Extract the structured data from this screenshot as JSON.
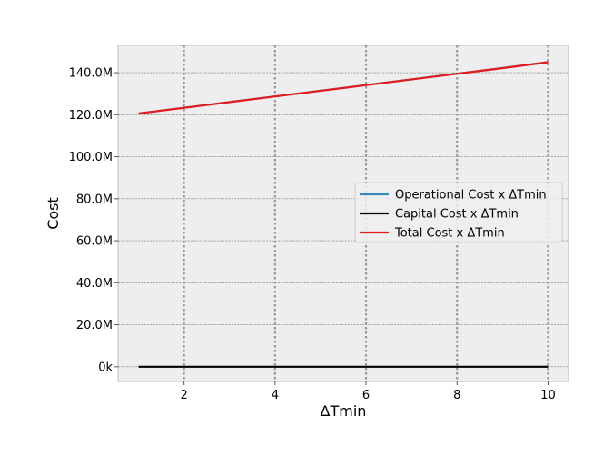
{
  "chart_data": {
    "type": "line",
    "xlabel": "ΔTmin",
    "ylabel": "Cost",
    "xlim": [
      0.55,
      10.45
    ],
    "ylim": [
      -7000000,
      153000000
    ],
    "x_ticks": [
      2,
      4,
      6,
      8,
      10
    ],
    "y_ticks": [
      {
        "value": 0,
        "label": "0k"
      },
      {
        "value": 20000000,
        "label": "20.0M"
      },
      {
        "value": 40000000,
        "label": "40.0M"
      },
      {
        "value": 60000000,
        "label": "60.0M"
      },
      {
        "value": 80000000,
        "label": "80.0M"
      },
      {
        "value": 100000000,
        "label": "100.0M"
      },
      {
        "value": 120000000,
        "label": "120.0M"
      },
      {
        "value": 140000000,
        "label": "140.0M"
      }
    ],
    "grid": true,
    "legend_position": "center-right",
    "x": [
      1,
      2,
      3,
      4,
      5,
      6,
      7,
      8,
      9,
      10
    ],
    "series": [
      {
        "name": "Operational Cost x ΔTmin",
        "color": "#348ABD",
        "values": [
          120600000,
          123300000,
          126000000,
          128700000,
          131400000,
          134100000,
          136800000,
          139500000,
          142200000,
          145000000
        ]
      },
      {
        "name": "Capital Cost x ΔTmin",
        "color": "#000000",
        "values": [
          0,
          0,
          0,
          0,
          0,
          0,
          0,
          0,
          0,
          0
        ]
      },
      {
        "name": "Total Cost x ΔTmin",
        "color": "#E41A1C",
        "values": [
          120600000,
          123300000,
          126000000,
          128700000,
          131400000,
          134100000,
          136800000,
          139500000,
          142200000,
          145000000
        ]
      }
    ]
  }
}
